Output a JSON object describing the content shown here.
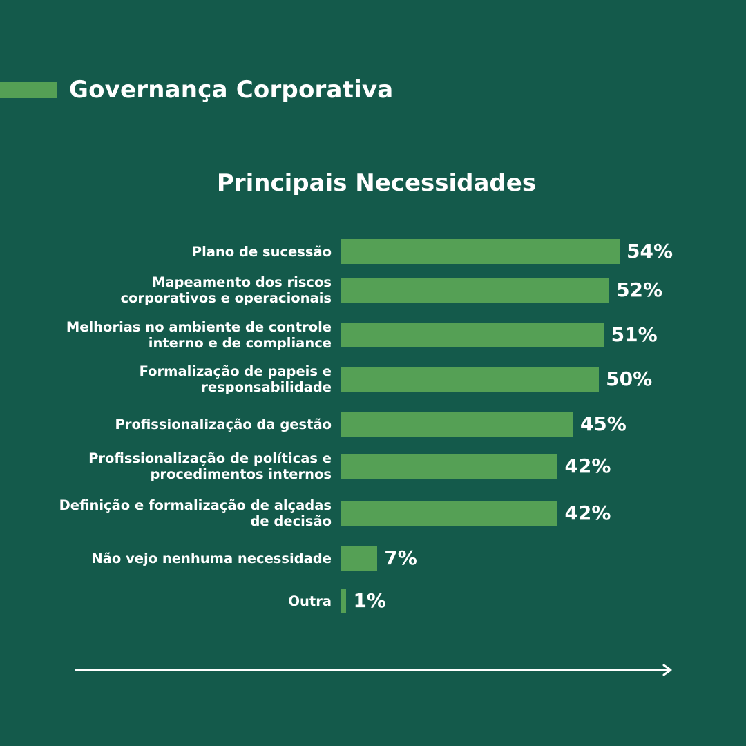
{
  "header": {
    "title": "Governança Corporativa"
  },
  "chart_data": {
    "type": "bar",
    "orientation": "horizontal",
    "title": "Principais Necessidades",
    "categories": [
      "Plano de sucessão",
      "Mapeamento dos riscos\ncorporativos e operacionais",
      "Melhorias no ambiente de controle\ninterno e de compliance",
      "Formalização de papeis e\nresponsabilidade",
      "Profissionalização da gestão",
      "Profissionalização de  políticas e\nprocedimentos internos",
      "Definição e formalização de alçadas\nde decisão",
      "Não vejo nenhuma necessidade",
      "Outra"
    ],
    "values": [
      54,
      52,
      51,
      50,
      45,
      42,
      42,
      7,
      1
    ],
    "value_labels": [
      "54%",
      "52%",
      "51%",
      "50%",
      "45%",
      "42%",
      "42%",
      "7%",
      "1%"
    ],
    "bar_color": "#55a055"
  },
  "colors": {
    "background": "#145a4b",
    "accent": "#55a055",
    "text": "#ffffff"
  }
}
